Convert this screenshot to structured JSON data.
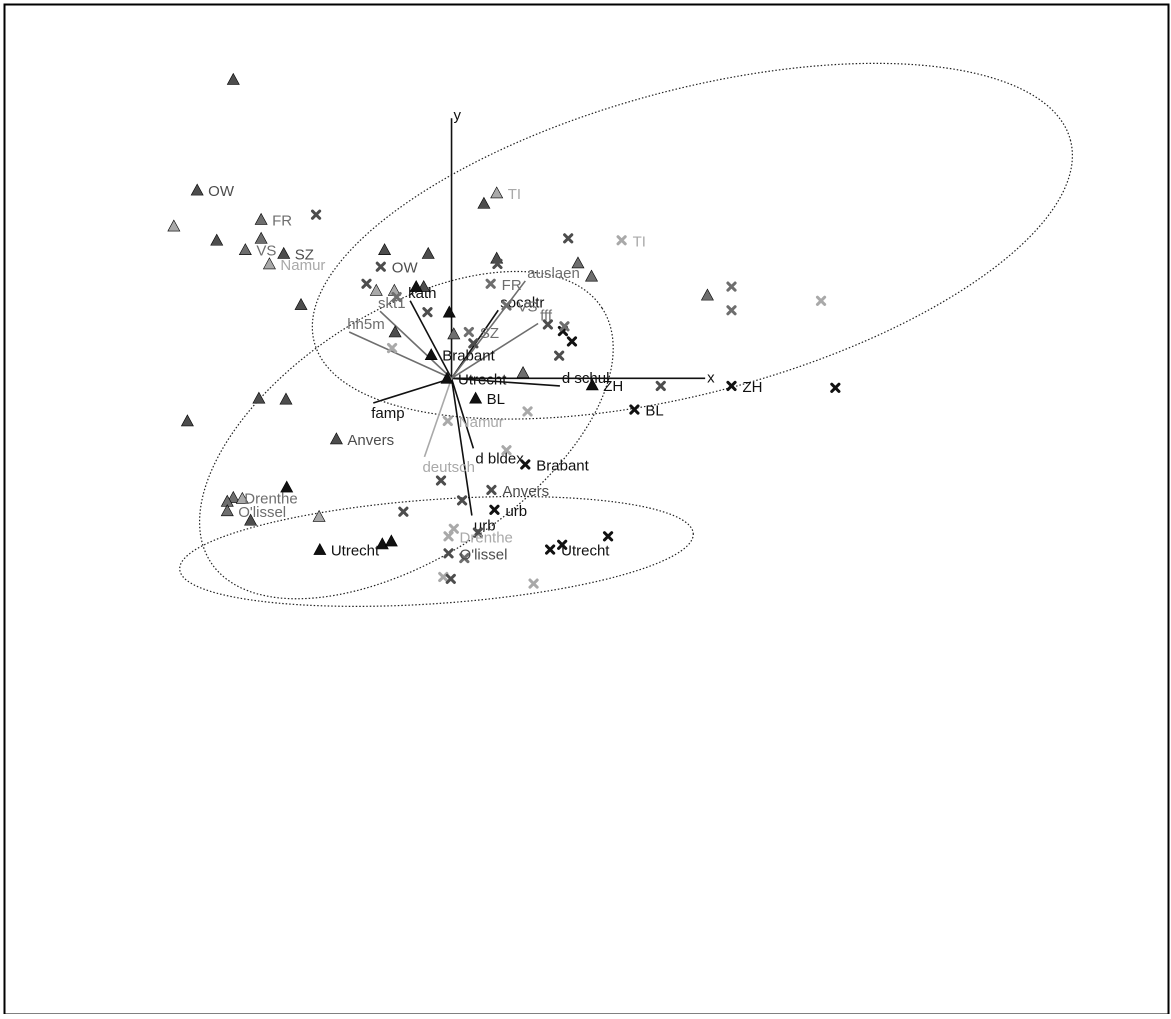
{
  "chart_data": {
    "type": "scatter",
    "title": "",
    "xlabel": "x",
    "ylabel": "y",
    "xlim": [
      -6.0,
      9.56
    ],
    "ylim": [
      -6.72,
      4.0
    ],
    "grid": false,
    "legend": "none",
    "colors": {
      "black": "#111111",
      "dark": "#4d4d4d",
      "mid": "#6e6e6e",
      "light": "#a9a9a9"
    },
    "clusters": [
      {
        "name": "",
        "ellipse": {
          "cx": 3.2,
          "cy": 1.45,
          "rx": 5.2,
          "ry": 1.6,
          "angle": -15
        }
      },
      {
        "name": "",
        "ellipse": {
          "cx": -0.6,
          "cy": -0.6,
          "rx": 3.1,
          "ry": 1.3,
          "angle": -33
        }
      },
      {
        "name": "",
        "ellipse": {
          "cx": -0.2,
          "cy": -1.83,
          "rx": 3.42,
          "ry": 0.55,
          "angle": -4
        }
      }
    ],
    "vectors": [
      {
        "label": "x",
        "x": 3.37,
        "y": 0.0,
        "color": "black"
      },
      {
        "label": "y",
        "x": 0.0,
        "y": 2.75,
        "color": "black"
      },
      {
        "label": "kath",
        "x": -0.55,
        "y": 0.82,
        "color": "black"
      },
      {
        "label": "socaltr",
        "x": 0.62,
        "y": 0.72,
        "color": "black"
      },
      {
        "label": "famp",
        "x": -1.04,
        "y": -0.26,
        "color": "black"
      },
      {
        "label": "urb",
        "x": 0.27,
        "y": -1.45,
        "color": "black"
      },
      {
        "label": "d  bldex",
        "x": 0.29,
        "y": -0.74,
        "color": "black"
      },
      {
        "label": "d  schul",
        "x": 1.44,
        "y": -0.08,
        "color": "black"
      },
      {
        "label": "skt1",
        "x": -0.95,
        "y": 0.71,
        "color": "mid"
      },
      {
        "label": "hh5m",
        "x": -1.36,
        "y": 0.49,
        "color": "mid"
      },
      {
        "label": "auslaen",
        "x": 0.98,
        "y": 1.03,
        "color": "mid"
      },
      {
        "label": "fff",
        "x": 1.15,
        "y": 0.58,
        "color": "mid"
      },
      {
        "label": "deutsch",
        "x": -0.36,
        "y": -0.83,
        "color": "light"
      }
    ],
    "series": [
      {
        "marker": "triangle",
        "points": [
          {
            "x": -2.9,
            "y": 3.16,
            "label": "",
            "color": "dark"
          },
          {
            "x": -3.38,
            "y": 1.99,
            "label": "OW",
            "color": "dark"
          },
          {
            "x": -3.69,
            "y": 1.61,
            "label": "",
            "color": "light"
          },
          {
            "x": -3.12,
            "y": 1.46,
            "label": "",
            "color": "dark"
          },
          {
            "x": -2.53,
            "y": 1.68,
            "label": "FR",
            "color": "mid"
          },
          {
            "x": -2.53,
            "y": 1.48,
            "label": "",
            "color": "mid"
          },
          {
            "x": -2.74,
            "y": 1.36,
            "label": "VS",
            "color": "mid"
          },
          {
            "x": -2.23,
            "y": 1.32,
            "label": "SZ",
            "color": "dark"
          },
          {
            "x": -2.42,
            "y": 1.21,
            "label": "Namur",
            "color": "light"
          },
          {
            "x": -2.0,
            "y": 0.78,
            "label": "",
            "color": "dark"
          },
          {
            "x": -0.89,
            "y": 1.36,
            "label": "",
            "color": "dark"
          },
          {
            "x": -0.31,
            "y": 1.32,
            "label": "",
            "color": "dark"
          },
          {
            "x": -0.37,
            "y": 0.97,
            "label": "",
            "color": "dark"
          },
          {
            "x": -0.47,
            "y": 0.97,
            "label": "",
            "color": "black"
          },
          {
            "x": -0.76,
            "y": 0.93,
            "label": "",
            "color": "light"
          },
          {
            "x": -1.0,
            "y": 0.93,
            "label": "",
            "color": "light"
          },
          {
            "x": -0.75,
            "y": 0.49,
            "label": "",
            "color": "dark"
          },
          {
            "x": -0.03,
            "y": 0.7,
            "label": "",
            "color": "black"
          },
          {
            "x": 0.03,
            "y": 0.47,
            "label": "",
            "color": "mid"
          },
          {
            "x": -0.27,
            "y": 0.25,
            "label": "Brabant",
            "color": "black"
          },
          {
            "x": -0.06,
            "y": 0.0,
            "label": "Utrecht",
            "color": "black"
          },
          {
            "x": 0.32,
            "y": -0.21,
            "label": "BL",
            "color": "black"
          },
          {
            "x": 0.43,
            "y": 1.85,
            "label": "",
            "color": "dark"
          },
          {
            "x": 0.6,
            "y": 1.96,
            "label": "TI",
            "color": "light"
          },
          {
            "x": 0.6,
            "y": 1.27,
            "label": "",
            "color": "dark"
          },
          {
            "x": 1.68,
            "y": 1.22,
            "label": "",
            "color": "mid"
          },
          {
            "x": 1.86,
            "y": 1.08,
            "label": "",
            "color": "mid"
          },
          {
            "x": 3.4,
            "y": 0.88,
            "label": "",
            "color": "mid"
          },
          {
            "x": 0.95,
            "y": 0.06,
            "label": "",
            "color": "mid"
          },
          {
            "x": 1.87,
            "y": -0.07,
            "label": "ZH",
            "color": "black"
          },
          {
            "x": -2.56,
            "y": -0.21,
            "label": "",
            "color": "dark"
          },
          {
            "x": -2.2,
            "y": -0.22,
            "label": "",
            "color": "dark"
          },
          {
            "x": -3.51,
            "y": -0.45,
            "label": "",
            "color": "dark"
          },
          {
            "x": -1.53,
            "y": -0.64,
            "label": "Anvers",
            "color": "dark"
          },
          {
            "x": -2.19,
            "y": -1.15,
            "label": "",
            "color": "black"
          },
          {
            "x": -2.9,
            "y": -1.26,
            "label": "Drenthe",
            "color": "mid"
          },
          {
            "x": -2.98,
            "y": -1.3,
            "label": "",
            "color": "mid"
          },
          {
            "x": -2.78,
            "y": -1.27,
            "label": "",
            "color": "light"
          },
          {
            "x": -2.98,
            "y": -1.4,
            "label": "O'lissel",
            "color": "mid"
          },
          {
            "x": -2.67,
            "y": -1.5,
            "label": "",
            "color": "dark"
          },
          {
            "x": -1.76,
            "y": -1.46,
            "label": "",
            "color": "light"
          },
          {
            "x": -1.75,
            "y": -1.81,
            "label": "Utrecht",
            "color": "black"
          },
          {
            "x": -0.92,
            "y": -1.75,
            "label": "",
            "color": "black"
          },
          {
            "x": -0.8,
            "y": -1.72,
            "label": "",
            "color": "black"
          }
        ]
      },
      {
        "marker": "cross",
        "points": [
          {
            "x": -1.8,
            "y": 1.73,
            "label": "",
            "color": "dark"
          },
          {
            "x": -0.94,
            "y": 1.18,
            "label": "OW",
            "color": "dark"
          },
          {
            "x": -1.13,
            "y": 1.0,
            "label": "",
            "color": "dark"
          },
          {
            "x": -0.73,
            "y": 0.86,
            "label": "",
            "color": "mid"
          },
          {
            "x": 0.61,
            "y": 1.21,
            "label": "",
            "color": "dark"
          },
          {
            "x": 0.52,
            "y": 1.0,
            "label": "FR",
            "color": "mid"
          },
          {
            "x": 0.73,
            "y": 0.77,
            "label": "VS",
            "color": "mid"
          },
          {
            "x": -0.32,
            "y": 0.7,
            "label": "",
            "color": "dark"
          },
          {
            "x": 0.23,
            "y": 0.49,
            "label": "SZ",
            "color": "mid"
          },
          {
            "x": 0.29,
            "y": 0.37,
            "label": "",
            "color": "dark"
          },
          {
            "x": -0.79,
            "y": 0.32,
            "label": "",
            "color": "light"
          },
          {
            "x": 1.55,
            "y": 1.48,
            "label": "",
            "color": "dark"
          },
          {
            "x": 2.26,
            "y": 1.46,
            "label": "TI",
            "color": "light"
          },
          {
            "x": 1.28,
            "y": 0.57,
            "label": "",
            "color": "dark"
          },
          {
            "x": 1.48,
            "y": 0.5,
            "label": "",
            "color": "black"
          },
          {
            "x": 1.5,
            "y": 0.55,
            "label": "",
            "color": "mid"
          },
          {
            "x": 1.6,
            "y": 0.39,
            "label": "",
            "color": "black"
          },
          {
            "x": 1.43,
            "y": 0.24,
            "label": "",
            "color": "dark"
          },
          {
            "x": 2.78,
            "y": -0.08,
            "label": "",
            "color": "dark"
          },
          {
            "x": 3.72,
            "y": 0.97,
            "label": "",
            "color": "mid"
          },
          {
            "x": 3.72,
            "y": 0.72,
            "label": "",
            "color": "mid"
          },
          {
            "x": 4.91,
            "y": 0.82,
            "label": "",
            "color": "light"
          },
          {
            "x": 3.72,
            "y": -0.08,
            "label": "ZH",
            "color": "black"
          },
          {
            "x": 5.1,
            "y": -0.1,
            "label": "",
            "color": "black"
          },
          {
            "x": 2.43,
            "y": -0.33,
            "label": "BL",
            "color": "black"
          },
          {
            "x": 1.01,
            "y": -0.35,
            "label": "",
            "color": "light"
          },
          {
            "x": -0.05,
            "y": -0.45,
            "label": "Namur",
            "color": "light"
          },
          {
            "x": 0.73,
            "y": -0.76,
            "label": "",
            "color": "light"
          },
          {
            "x": 0.98,
            "y": -0.91,
            "label": "Brabant",
            "color": "black"
          },
          {
            "x": -0.14,
            "y": -1.08,
            "label": "",
            "color": "dark"
          },
          {
            "x": 0.53,
            "y": -1.18,
            "label": "Anvers",
            "color": "dark"
          },
          {
            "x": 0.14,
            "y": -1.29,
            "label": "",
            "color": "dark"
          },
          {
            "x": -0.64,
            "y": -1.41,
            "label": "",
            "color": "dark"
          },
          {
            "x": 0.57,
            "y": -1.39,
            "label": "urb",
            "color": "black"
          },
          {
            "x": 0.03,
            "y": -1.59,
            "label": "",
            "color": "light"
          },
          {
            "x": -0.04,
            "y": -1.67,
            "label": "Drenthe",
            "color": "light"
          },
          {
            "x": 0.35,
            "y": -1.63,
            "label": "",
            "color": "dark"
          },
          {
            "x": 1.31,
            "y": -1.81,
            "label": "Utrecht",
            "color": "black"
          },
          {
            "x": 1.47,
            "y": -1.76,
            "label": "",
            "color": "black"
          },
          {
            "x": 2.08,
            "y": -1.67,
            "label": "",
            "color": "black"
          },
          {
            "x": -0.04,
            "y": -1.85,
            "label": "O'lissel",
            "color": "dark"
          },
          {
            "x": 0.17,
            "y": -1.9,
            "label": "",
            "color": "mid"
          },
          {
            "x": -0.11,
            "y": -2.1,
            "label": "",
            "color": "light"
          },
          {
            "x": -0.01,
            "y": -2.12,
            "label": "",
            "color": "dark"
          },
          {
            "x": 1.09,
            "y": -2.17,
            "label": "",
            "color": "light"
          }
        ]
      }
    ]
  }
}
